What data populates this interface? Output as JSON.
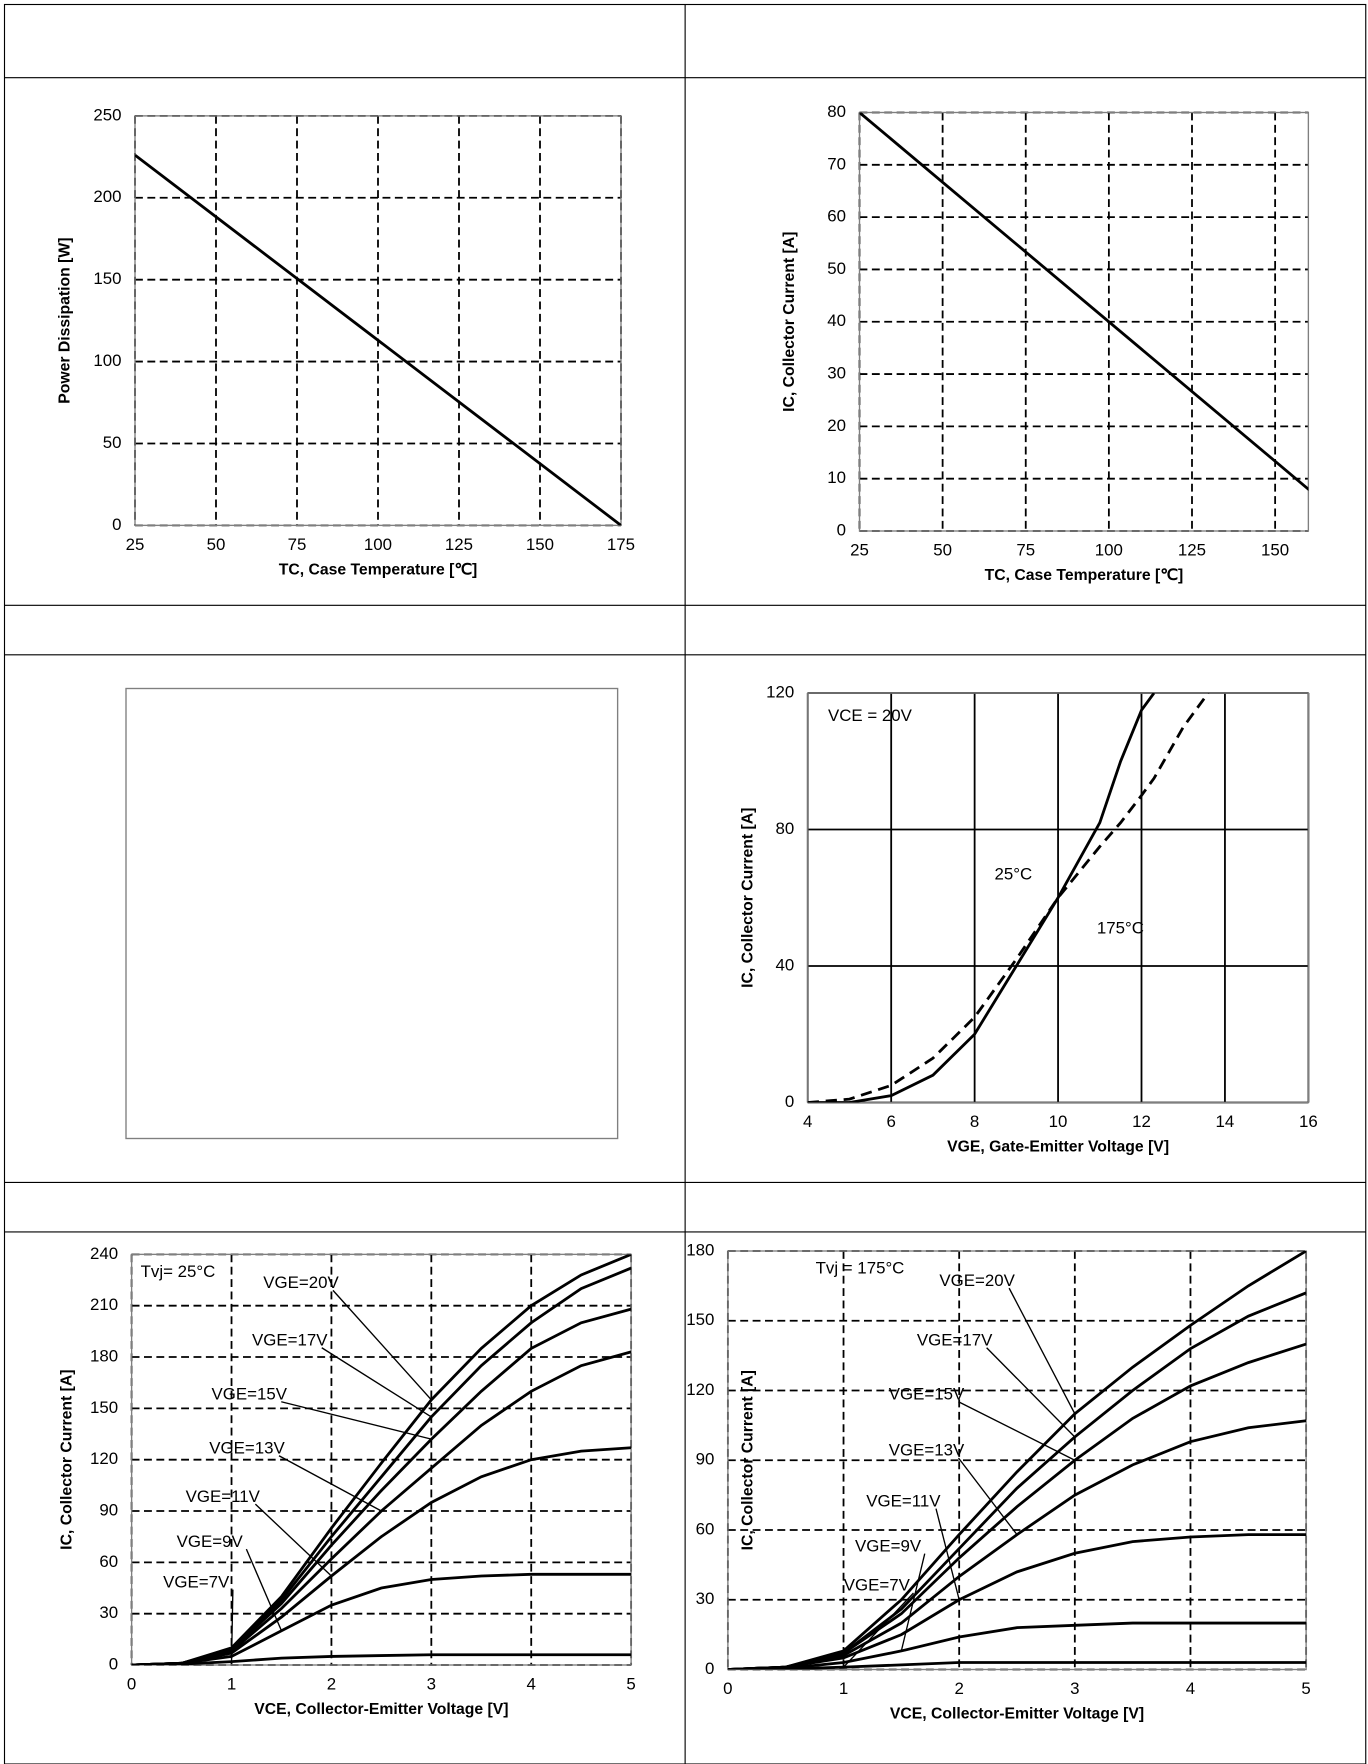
{
  "chart_data": [
    {
      "type": "line",
      "ylabel": "Power Dissipation [W]",
      "xlabel": "TC, Case Temperature [℃]",
      "x": [
        25,
        175
      ],
      "values": [
        226,
        0
      ],
      "color": "#000000",
      "xlim": [
        25,
        175
      ],
      "xticks": [
        25,
        50,
        75,
        100,
        125,
        150,
        175
      ],
      "ylim": [
        0,
        250
      ],
      "yticks": [
        0,
        50,
        100,
        150,
        200,
        250
      ],
      "grid": "dashed"
    },
    {
      "type": "line",
      "ylabel": "IC, Collector Current [A]",
      "xlabel": "TC, Case Temperature [℃]",
      "x": [
        25,
        175
      ],
      "values": [
        80,
        0
      ],
      "color": "#000000",
      "xlim": [
        25,
        160
      ],
      "xticks": [
        25,
        50,
        75,
        100,
        125,
        150
      ],
      "ylim": [
        0,
        80
      ],
      "yticks": [
        0,
        10,
        20,
        30,
        40,
        50,
        60,
        70,
        80
      ],
      "grid": "dashed"
    },
    {
      "type": "line",
      "ylabel": "IC, Collector Current [A]",
      "xlabel": "VGE, Gate-Emitter Voltage [V]",
      "annotations": [
        "VCE = 20V"
      ],
      "x": [
        4,
        5,
        6,
        7,
        8,
        9,
        10,
        11,
        11.5,
        12,
        12.3,
        13,
        13.6
      ],
      "series": [
        {
          "name": "25°C",
          "color": "#000000",
          "style": "solid",
          "values": [
            0,
            0,
            2,
            8,
            20,
            40,
            60,
            82,
            100,
            115,
            120,
            null,
            null
          ]
        },
        {
          "name": "175°C",
          "color": "#000000",
          "style": "dashed",
          "values": [
            0,
            1,
            5,
            13,
            25,
            42,
            60,
            75,
            82,
            90,
            95,
            110,
            120
          ]
        }
      ],
      "xlim": [
        4,
        16
      ],
      "xticks": [
        4,
        6,
        8,
        10,
        12,
        14,
        16
      ],
      "ylim": [
        0,
        120
      ],
      "yticks": [
        0,
        40,
        80,
        120
      ],
      "grid": "solid"
    },
    {
      "type": "line",
      "ylabel": "IC, Collector Current [A]",
      "xlabel": "VCE, Collector-Emitter Voltage [V]",
      "annotations": [
        "Tvj= 25°C"
      ],
      "x": [
        0,
        0.5,
        1,
        1.5,
        2,
        2.5,
        3,
        3.5,
        4,
        4.5,
        5
      ],
      "series": [
        {
          "name": "VGE=20V",
          "color": "#000000",
          "values": [
            0,
            1,
            10,
            40,
            80,
            118,
            155,
            185,
            210,
            228,
            240
          ]
        },
        {
          "name": "VGE=17V",
          "color": "#000000",
          "values": [
            0,
            1,
            9,
            38,
            75,
            110,
            145,
            175,
            200,
            220,
            232
          ]
        },
        {
          "name": "VGE=15V",
          "color": "#000000",
          "values": [
            0,
            1,
            9,
            36,
            70,
            102,
            132,
            160,
            185,
            200,
            208
          ]
        },
        {
          "name": "VGE=13V",
          "color": "#000000",
          "values": [
            0,
            1,
            8,
            33,
            62,
            90,
            115,
            140,
            160,
            175,
            183
          ]
        },
        {
          "name": "VGE=11V",
          "color": "#000000",
          "values": [
            0,
            1,
            7,
            28,
            52,
            75,
            95,
            110,
            120,
            125,
            127
          ]
        },
        {
          "name": "VGE=9V",
          "color": "#000000",
          "values": [
            0,
            1,
            5,
            20,
            35,
            45,
            50,
            52,
            53,
            53,
            53
          ]
        },
        {
          "name": "VGE=7V",
          "color": "#000000",
          "values": [
            0,
            0.5,
            2,
            4,
            5,
            5.5,
            6,
            6,
            6,
            6,
            6
          ]
        }
      ],
      "xlim": [
        0,
        5
      ],
      "xticks": [
        0,
        1,
        2,
        3,
        4,
        5
      ],
      "ylim": [
        0,
        240
      ],
      "yticks": [
        0,
        30,
        60,
        90,
        120,
        150,
        180,
        210,
        240
      ],
      "grid": "dashed"
    },
    {
      "type": "line",
      "ylabel": "IC, Collector Current [A]",
      "xlabel": "VCE, Collector-Emitter Voltage [V]",
      "annotations": [
        "Tvj = 175°C"
      ],
      "x": [
        0,
        0.5,
        1,
        1.5,
        2,
        2.5,
        3,
        3.5,
        4,
        4.5,
        5
      ],
      "series": [
        {
          "name": "VGE=20V",
          "color": "#000000",
          "values": [
            0,
            1,
            8,
            30,
            58,
            85,
            110,
            130,
            148,
            165,
            180
          ]
        },
        {
          "name": "VGE=17V",
          "color": "#000000",
          "values": [
            0,
            1,
            7,
            26,
            52,
            78,
            100,
            120,
            138,
            152,
            162
          ]
        },
        {
          "name": "VGE=15V",
          "color": "#000000",
          "values": [
            0,
            1,
            7,
            24,
            48,
            70,
            90,
            108,
            122,
            132,
            140
          ]
        },
        {
          "name": "VGE=13V",
          "color": "#000000",
          "values": [
            0,
            1,
            6,
            20,
            40,
            58,
            75,
            88,
            98,
            104,
            107
          ]
        },
        {
          "name": "VGE=11V",
          "color": "#000000",
          "values": [
            0,
            1,
            5,
            15,
            30,
            42,
            50,
            55,
            57,
            58,
            58
          ]
        },
        {
          "name": "VGE=9V",
          "color": "#000000",
          "values": [
            0,
            0.5,
            3,
            8,
            14,
            18,
            19,
            20,
            20,
            20,
            20
          ]
        },
        {
          "name": "VGE=7V",
          "color": "#000000",
          "values": [
            0,
            0.2,
            1,
            2,
            3,
            3,
            3,
            3,
            3,
            3,
            3
          ]
        }
      ],
      "xlim": [
        0,
        5
      ],
      "xticks": [
        0,
        1,
        2,
        3,
        4,
        5
      ],
      "ylim": [
        0,
        180
      ],
      "yticks": [
        0,
        30,
        60,
        90,
        120,
        150,
        180
      ],
      "grid": "dashed"
    }
  ]
}
